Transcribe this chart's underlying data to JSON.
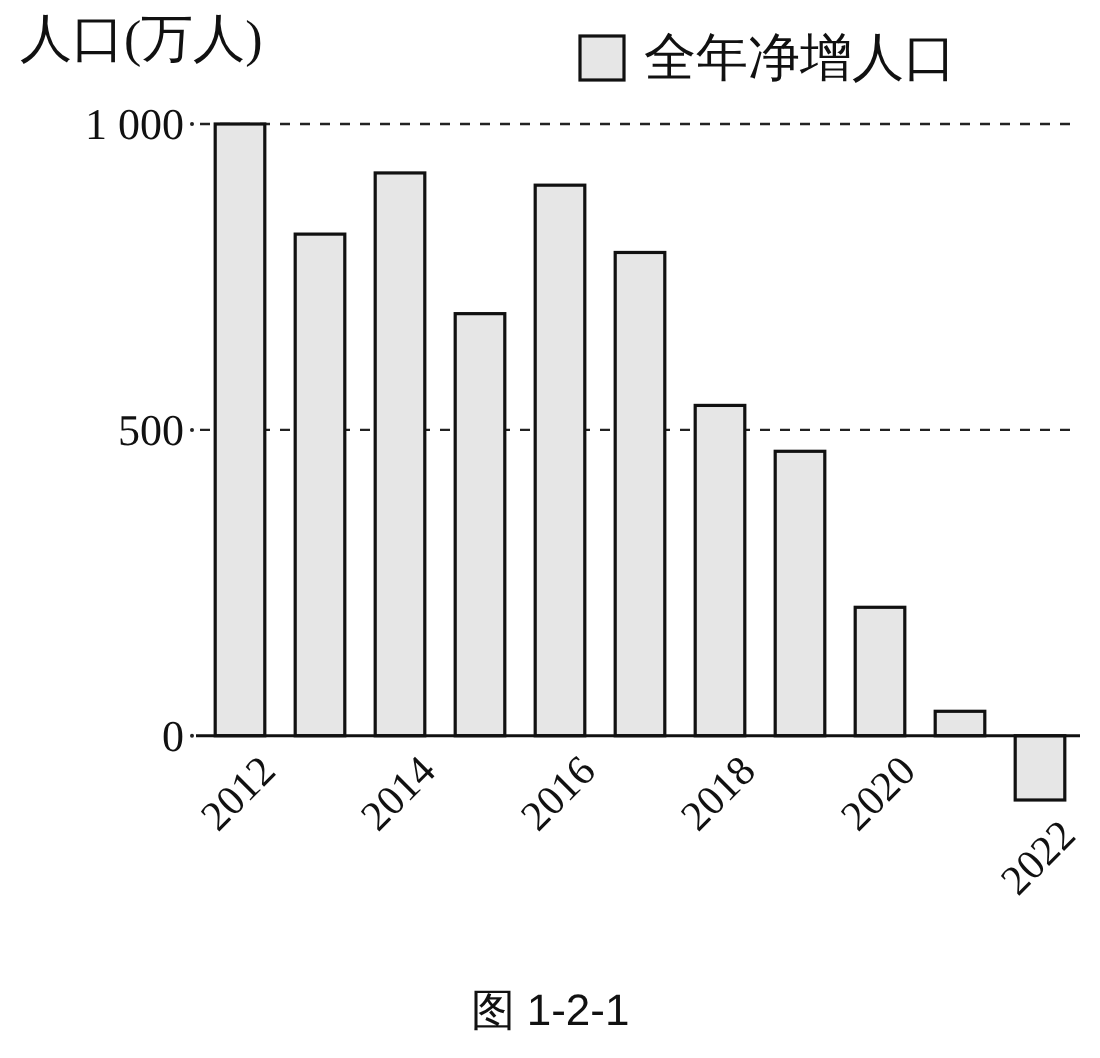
{
  "chart_data": {
    "type": "bar",
    "ylabel": "人口(万人)",
    "categories": [
      "2012",
      null,
      "2014",
      null,
      "2016",
      null,
      "2018",
      null,
      "2020",
      null,
      "2022"
    ],
    "series": [
      {
        "name": "全年净增人口",
        "color": "#e6e6e6",
        "values": [
          1000,
          820,
          920,
          690,
          900,
          790,
          540,
          465,
          210,
          40,
          -105
        ]
      }
    ],
    "ylim": [
      -105,
      1000
    ],
    "yticks": [
      0,
      500,
      {
        "value": 1000,
        "label": "1 000"
      }
    ],
    "grid": "y",
    "legend": "top right",
    "annotations": [
      "图 1-2-1"
    ]
  }
}
